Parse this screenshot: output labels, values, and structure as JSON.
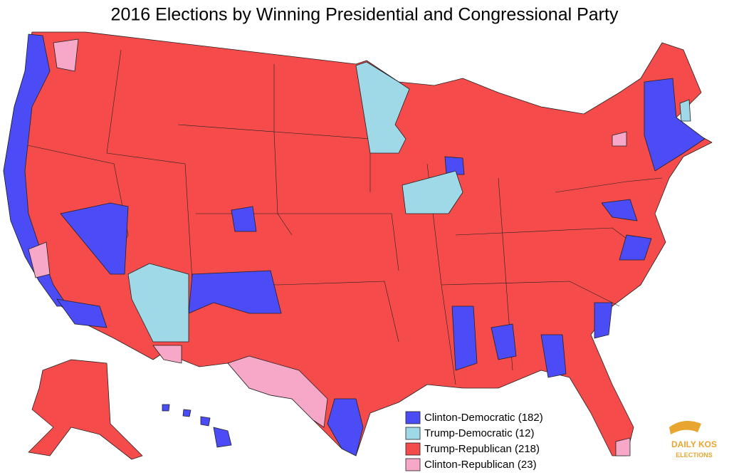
{
  "header": {
    "title": "2016 Elections by Winning Presidential and Congressional Party"
  },
  "legend": {
    "items": [
      {
        "label": "Clinton-Democratic (182)",
        "color": "#4b4cf5"
      },
      {
        "label": "Trump-Democratic (12)",
        "color": "#9fd9e8"
      },
      {
        "label": "Trump-Republican (218)",
        "color": "#f54b4b"
      },
      {
        "label": "Clinton-Republican (23)",
        "color": "#f7a8c8"
      }
    ]
  },
  "logo": {
    "line1": "DAILY KOS",
    "line2": "ELECTIONS"
  }
}
